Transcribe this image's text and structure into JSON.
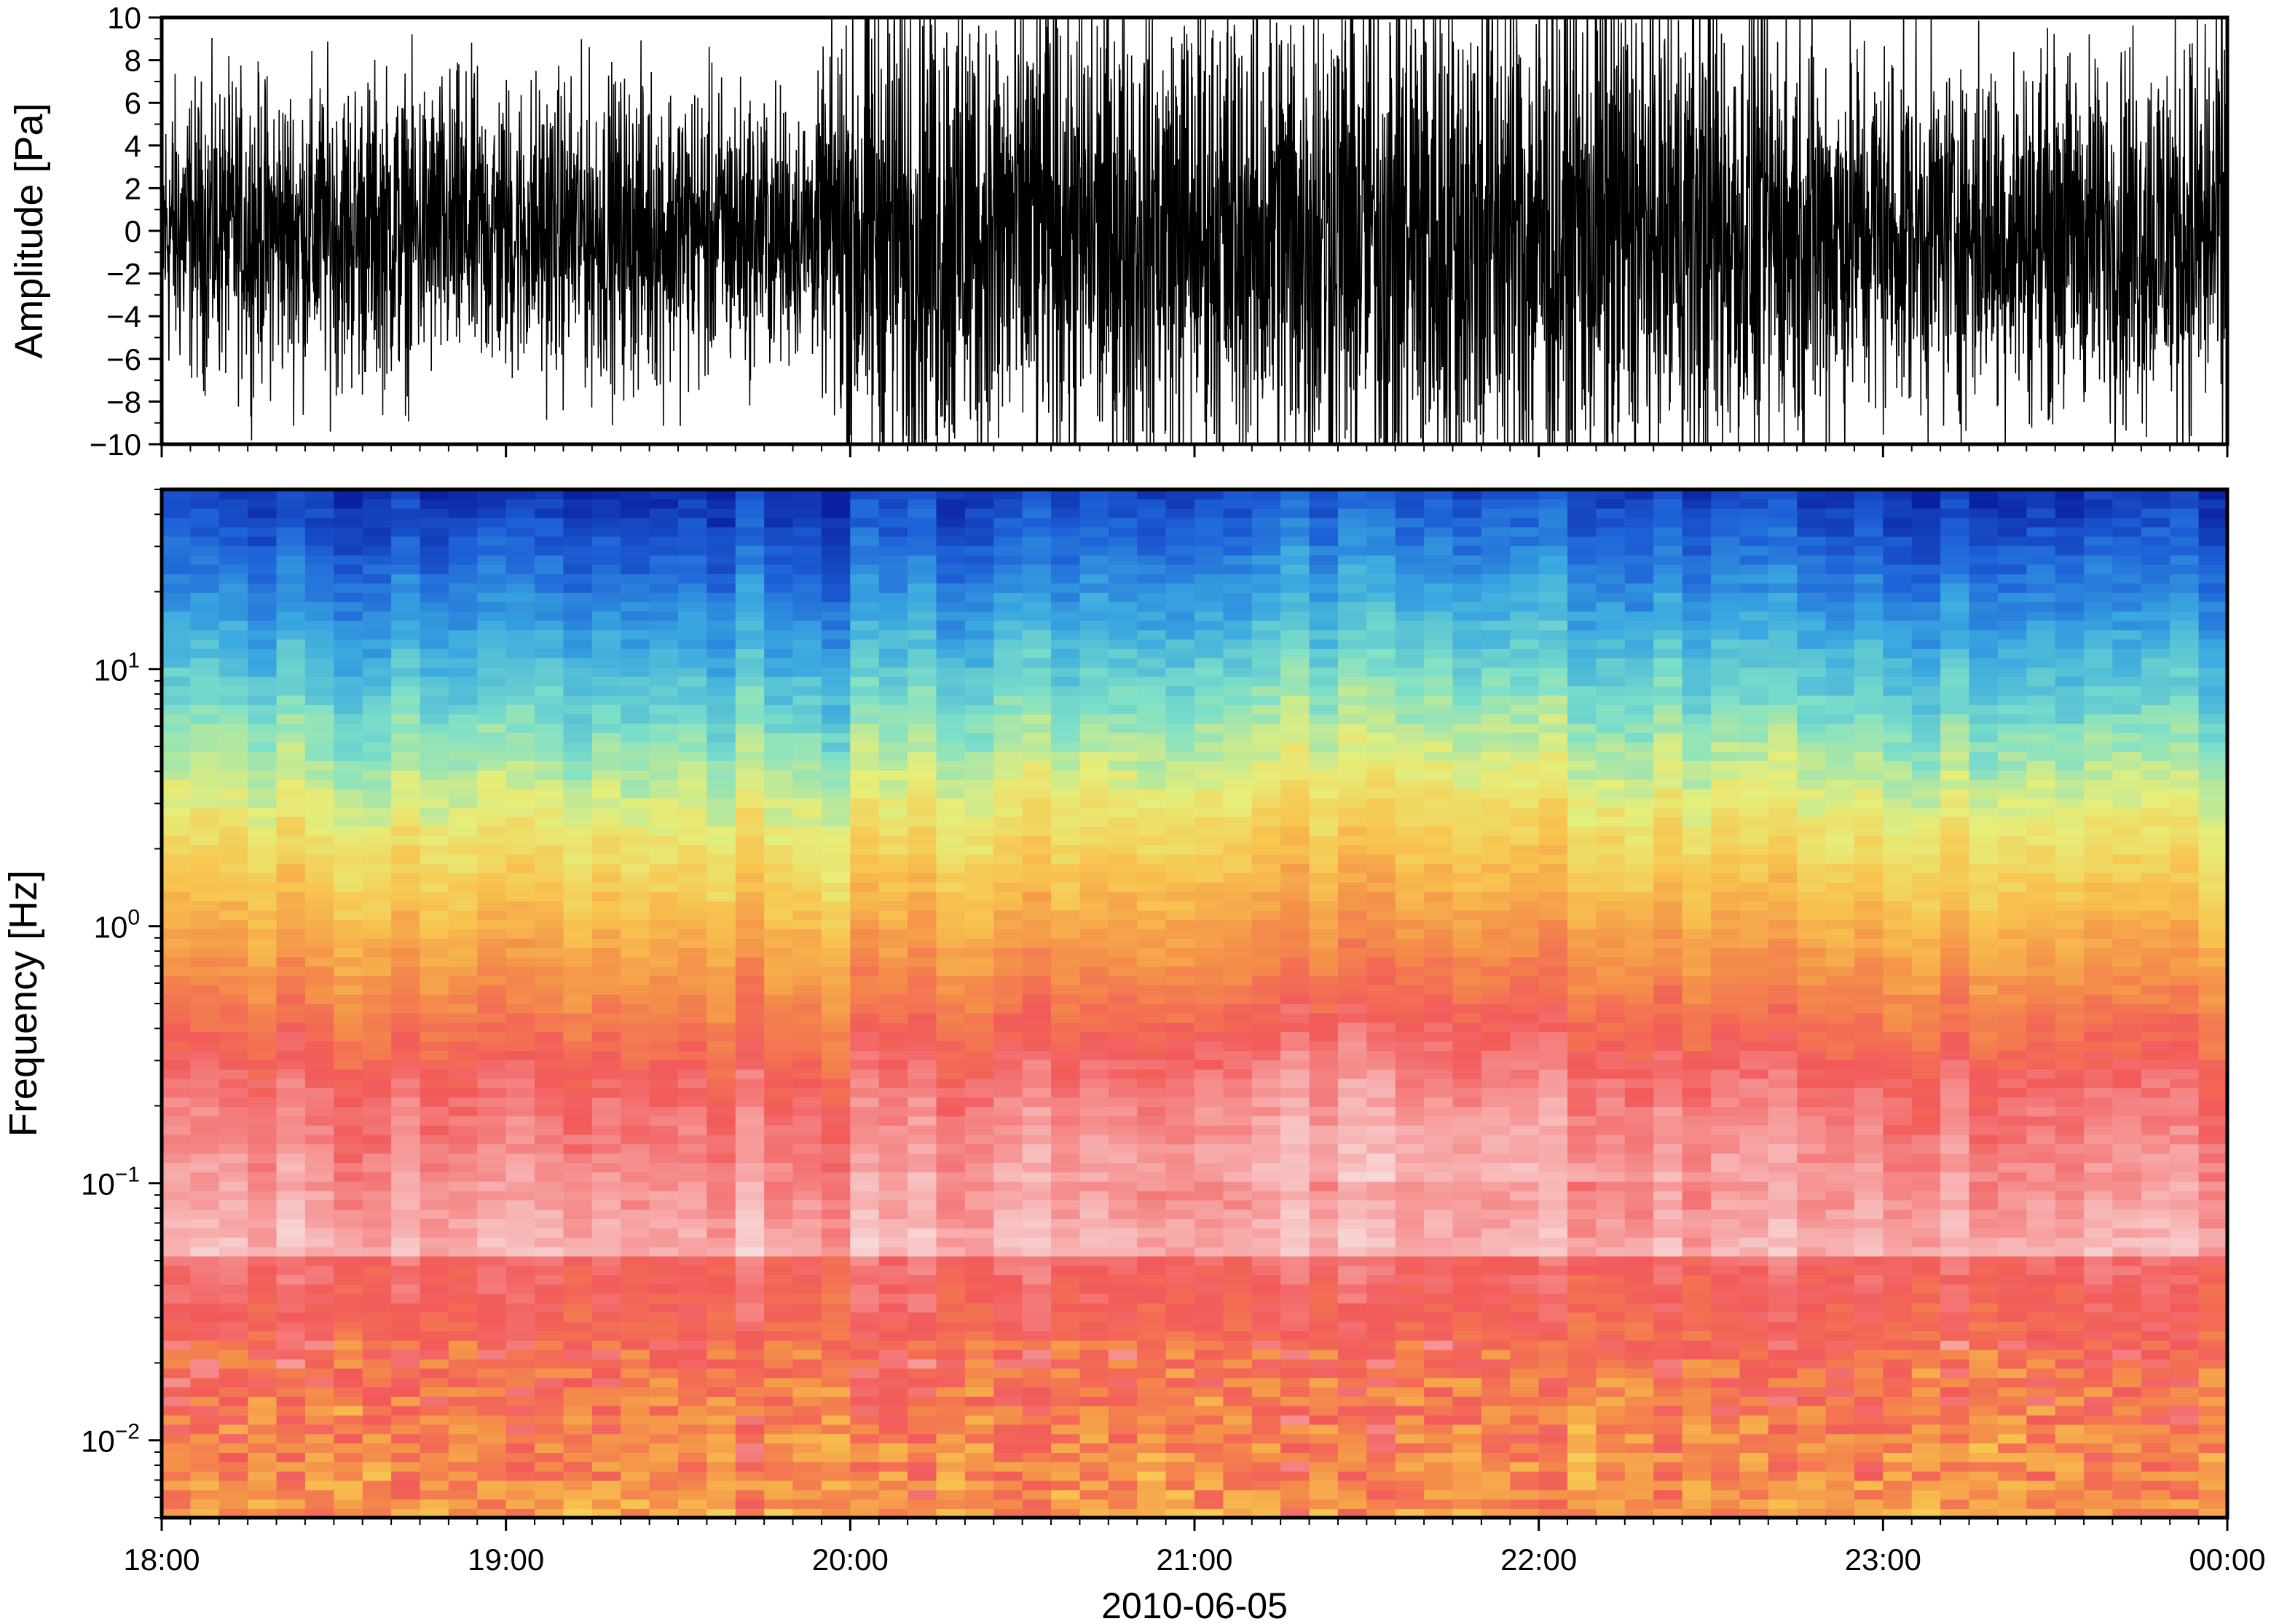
{
  "chart_data": [
    {
      "type": "line",
      "title": "",
      "ylabel": "Amplitude [Pa]",
      "xlabel": "",
      "xlim": [
        "18:00",
        "00:00"
      ],
      "ylim": [
        -10,
        10
      ],
      "yticks": [
        "10",
        "8",
        "6",
        "4",
        "2",
        "0",
        "−2",
        "−4",
        "−6",
        "−8",
        "−10"
      ],
      "ytick_values": [
        10,
        8,
        6,
        4,
        2,
        0,
        -2,
        -4,
        -6,
        -8,
        -10
      ],
      "grid": false,
      "series": [
        {
          "color": "#000000",
          "envelope_hours": [
            18.0,
            18.5,
            19.0,
            19.5,
            19.9,
            20.0,
            20.5,
            21.0,
            21.5,
            22.0,
            22.5,
            23.0,
            23.5,
            24.0
          ],
          "envelope_pa": [
            4.5,
            5.0,
            4.8,
            5.0,
            4.0,
            8.5,
            8.0,
            7.5,
            9.0,
            9.0,
            8.0,
            6.0,
            5.5,
            7.0
          ]
        }
      ]
    },
    {
      "type": "heatmap",
      "title": "",
      "ylabel": "Frequency [Hz]",
      "xlabel": "2010-06-05",
      "xticks": [
        "18:00",
        "19:00",
        "20:00",
        "21:00",
        "22:00",
        "23:00",
        "00:00"
      ],
      "xtick_hours": [
        18,
        19,
        20,
        21,
        22,
        23,
        24
      ],
      "yscale": "log",
      "ylim": [
        0.005,
        50
      ],
      "yticks": [
        {
          "value": 10,
          "base": "10",
          "exp": "1"
        },
        {
          "value": 1,
          "base": "10",
          "exp": "0"
        },
        {
          "value": 0.1,
          "base": "10",
          "exp": "−1"
        },
        {
          "value": 0.01,
          "base": "10",
          "exp": "−2"
        }
      ],
      "colormap": [
        "#f8e8e8",
        "#f7a6a6",
        "#f25a5a",
        "#f48f4a",
        "#f8c44e",
        "#e6ee7a",
        "#7ee0c8",
        "#3aa9e0",
        "#1e62d8",
        "#0a20a0"
      ],
      "legend": "none"
    }
  ]
}
